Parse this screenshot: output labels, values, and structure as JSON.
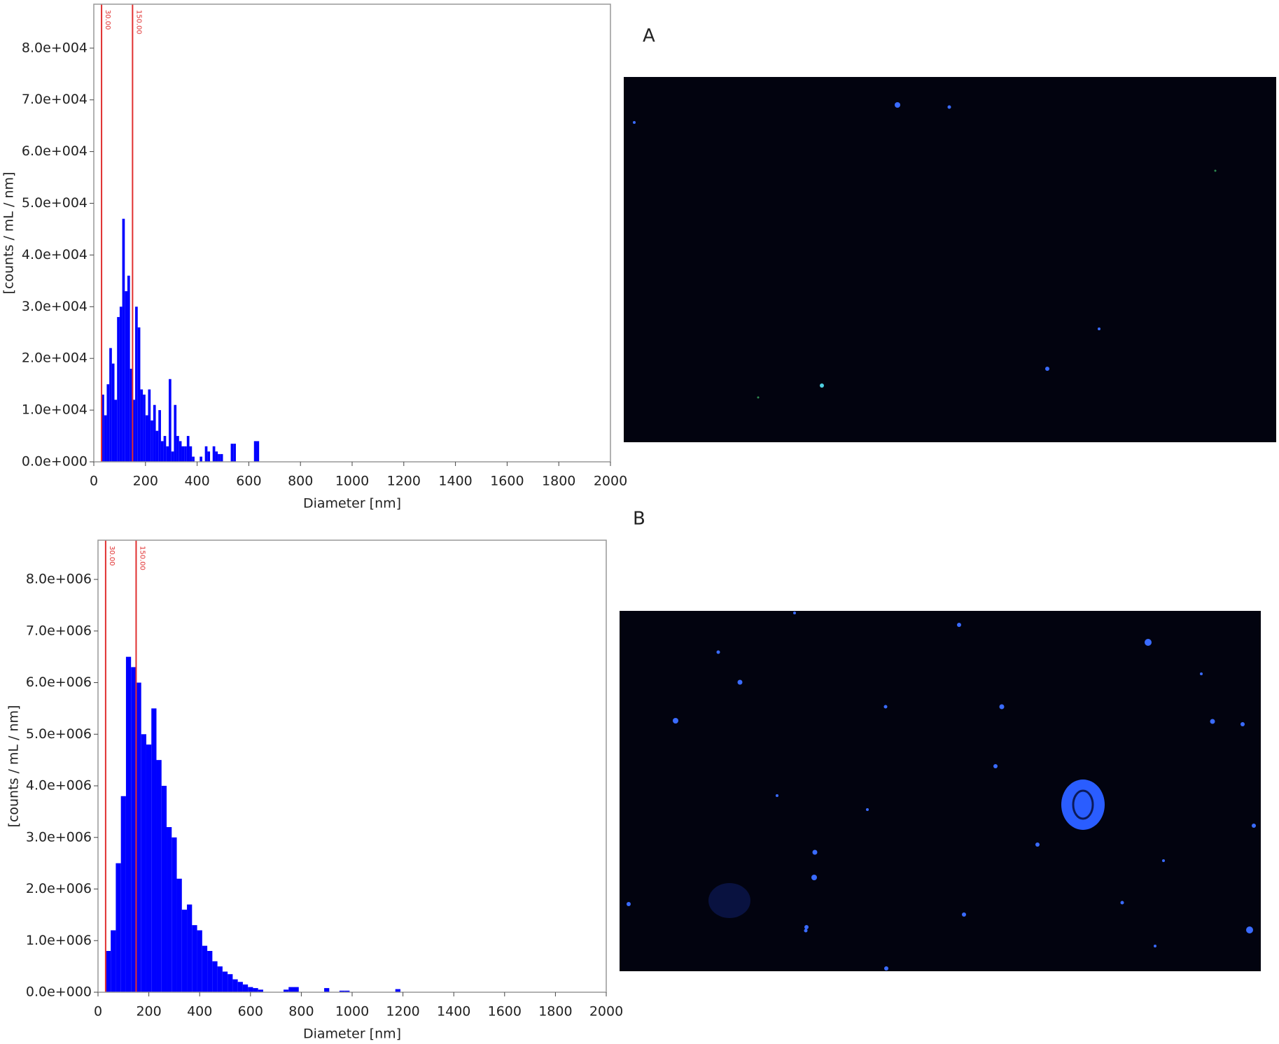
{
  "chart_data": [
    {
      "type": "histogram",
      "color": "#0000ff",
      "marker_color": "#e03030",
      "x_label": "Diameter [nm]",
      "y_label": "[counts / mL / nm]",
      "xlim": [
        0,
        2000
      ],
      "xticks": [
        0,
        200,
        400,
        600,
        800,
        1000,
        1200,
        1400,
        1600,
        1800,
        2000
      ],
      "ylim": [
        0,
        88500
      ],
      "yticks": [
        {
          "value": 0,
          "label": "0.0e+000"
        },
        {
          "value": 10000,
          "label": "1.0e+004"
        },
        {
          "value": 20000,
          "label": "2.0e+004"
        },
        {
          "value": 30000,
          "label": "3.0e+004"
        },
        {
          "value": 40000,
          "label": "4.0e+004"
        },
        {
          "value": 50000,
          "label": "5.0e+004"
        },
        {
          "value": 60000,
          "label": "6.0e+004"
        },
        {
          "value": 70000,
          "label": "7.0e+004"
        },
        {
          "value": 80000,
          "label": "8.0e+004"
        }
      ],
      "markers": [
        {
          "value": 30,
          "label": "30.00"
        },
        {
          "value": 150,
          "label": "150.00"
        }
      ],
      "bins": [
        30,
        40,
        50,
        60,
        70,
        80,
        90,
        100,
        110,
        120,
        130,
        140,
        150,
        160,
        170,
        180,
        190,
        200,
        210,
        220,
        230,
        240,
        250,
        260,
        270,
        280,
        290,
        300,
        310,
        320,
        330,
        340,
        350,
        360,
        370,
        380,
        390,
        400,
        410,
        420,
        430,
        440,
        450,
        460,
        470,
        480,
        490,
        500,
        510,
        520,
        530,
        540,
        550,
        560,
        570,
        580,
        590,
        600,
        610,
        620,
        630,
        640,
        650
      ],
      "values": [
        13000,
        9000,
        15000,
        22000,
        19000,
        12000,
        28000,
        30000,
        47000,
        33000,
        36000,
        18000,
        12000,
        30000,
        26000,
        14000,
        13000,
        9000,
        14000,
        8000,
        11000,
        6000,
        10000,
        4000,
        5000,
        3000,
        16000,
        2000,
        11000,
        5000,
        4000,
        3000,
        3000,
        5000,
        3000,
        1000,
        0,
        0,
        1000,
        0,
        3000,
        2000,
        0,
        3000,
        2000,
        1500,
        1500,
        0,
        0,
        0,
        3500,
        3500,
        0,
        0,
        0,
        0,
        0,
        0,
        0,
        4000,
        4000,
        0
      ]
    },
    {
      "type": "histogram",
      "color": "#0000ff",
      "marker_color": "#e03030",
      "x_label": "Diameter [nm]",
      "y_label": "[counts / mL / nm]",
      "xlim": [
        0,
        2000
      ],
      "xticks": [
        0,
        200,
        400,
        600,
        800,
        1000,
        1200,
        1400,
        1600,
        1800,
        2000
      ],
      "ylim": [
        0,
        8760000
      ],
      "yticks": [
        {
          "value": 0,
          "label": "0.0e+000"
        },
        {
          "value": 1000000,
          "label": "1.0e+006"
        },
        {
          "value": 2000000,
          "label": "2.0e+006"
        },
        {
          "value": 3000000,
          "label": "3.0e+006"
        },
        {
          "value": 4000000,
          "label": "4.0e+006"
        },
        {
          "value": 5000000,
          "label": "5.0e+006"
        },
        {
          "value": 6000000,
          "label": "6.0e+006"
        },
        {
          "value": 7000000,
          "label": "7.0e+006"
        },
        {
          "value": 8000000,
          "label": "8.0e+006"
        }
      ],
      "markers": [
        {
          "value": 30,
          "label": "30.00"
        },
        {
          "value": 150,
          "label": "150.00"
        }
      ],
      "bins": [
        30,
        50,
        70,
        90,
        110,
        130,
        150,
        170,
        190,
        210,
        230,
        250,
        270,
        290,
        310,
        330,
        350,
        370,
        390,
        410,
        430,
        450,
        470,
        490,
        510,
        530,
        550,
        570,
        590,
        610,
        630,
        650,
        670,
        690,
        710,
        730,
        750,
        770,
        790,
        810,
        830,
        850,
        870,
        890,
        910,
        930,
        950,
        970,
        990,
        1010,
        1030,
        1050,
        1070,
        1090,
        1110,
        1130,
        1150,
        1170,
        1190,
        1210
      ],
      "values": [
        800000,
        1200000,
        2500000,
        3800000,
        6500000,
        6300000,
        6000000,
        5000000,
        4800000,
        5500000,
        4500000,
        4000000,
        3200000,
        3000000,
        2200000,
        1600000,
        1700000,
        1300000,
        1200000,
        900000,
        800000,
        600000,
        500000,
        400000,
        350000,
        250000,
        200000,
        150000,
        100000,
        80000,
        50000,
        0,
        0,
        0,
        0,
        50000,
        100000,
        100000,
        0,
        0,
        0,
        0,
        0,
        80000,
        0,
        0,
        30000,
        30000,
        0,
        0,
        0,
        0,
        0,
        0,
        0,
        0,
        0,
        60000,
        0
      ]
    }
  ],
  "panel_labels": [
    "A",
    "B"
  ]
}
